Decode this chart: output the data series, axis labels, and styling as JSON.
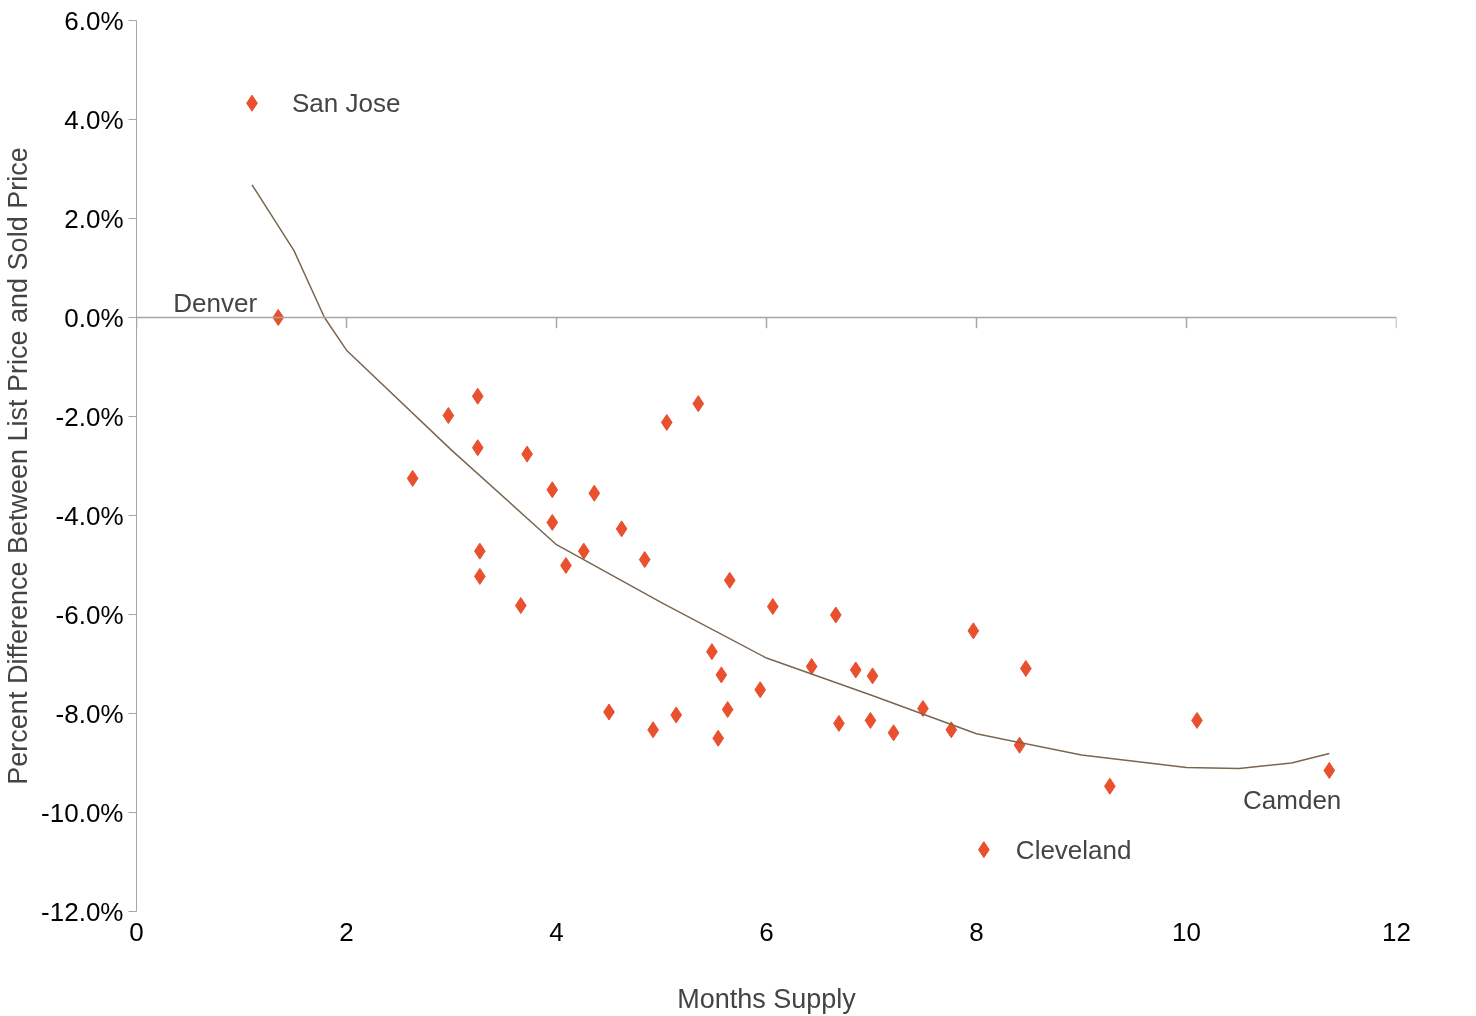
{
  "chart_data": {
    "type": "scatter",
    "xlabel": "Months Supply",
    "ylabel": "Percent Difference Between List Price and Sold Price",
    "xlim": [
      0,
      12
    ],
    "xticks": [
      0,
      2,
      4,
      6,
      8,
      10,
      12
    ],
    "ylim": [
      -12,
      6
    ],
    "yticks": [
      {
        "value": -12,
        "label": "-12.0%"
      },
      {
        "value": -10,
        "label": "-10.0%"
      },
      {
        "value": -8,
        "label": "-8.0%"
      },
      {
        "value": -6,
        "label": "-6.0%"
      },
      {
        "value": -4,
        "label": "-4.0%"
      },
      {
        "value": -2,
        "label": "-2.0%"
      },
      {
        "value": 0,
        "label": "0.0%"
      },
      {
        "value": 2,
        "label": "2.0%"
      },
      {
        "value": 4,
        "label": "4.0%"
      },
      {
        "value": 6,
        "label": "6.0%"
      }
    ],
    "grid": false,
    "marker": "diamond",
    "series": [
      {
        "color": "#e8502e",
        "x": [
          1.1,
          1.35,
          2.63,
          2.97,
          3.25,
          3.25,
          3.27,
          3.27,
          3.66,
          3.72,
          3.96,
          3.96,
          4.09,
          4.26,
          4.36,
          4.5,
          4.62,
          4.84,
          4.92,
          5.05,
          5.14,
          5.35,
          5.48,
          5.54,
          5.57,
          5.63,
          5.65,
          5.94,
          6.06,
          6.43,
          6.66,
          6.69,
          6.85,
          6.99,
          7.01,
          7.21,
          7.49,
          7.76,
          7.97,
          8.41,
          8.47,
          8.07,
          9.27,
          10.1,
          11.36
        ],
        "values": [
          4.33,
          0.0,
          -3.25,
          -1.98,
          -1.59,
          -2.63,
          -4.72,
          -5.23,
          -5.82,
          -2.76,
          -3.48,
          -4.14,
          -5.01,
          -4.72,
          -3.55,
          -7.97,
          -4.27,
          -4.89,
          -8.33,
          -2.12,
          -8.03,
          -1.74,
          -6.75,
          -8.5,
          -7.22,
          -7.92,
          -5.31,
          -7.52,
          -5.84,
          -7.05,
          -6.01,
          -8.2,
          -7.12,
          -8.14,
          -7.24,
          -8.39,
          -7.9,
          -8.33,
          -6.33,
          -8.64,
          -7.09,
          -10.75,
          -9.47,
          -8.14,
          -9.15
        ]
      },
      {
        "type": "line",
        "color": "#7a6650",
        "marker": "none",
        "line_style": "solid",
        "x": [
          1.1,
          1.5,
          1.79,
          2,
          3,
          4,
          5,
          6,
          7,
          8,
          9,
          10,
          10.5,
          11,
          11.36
        ],
        "values": [
          2.68,
          1.35,
          0.0,
          -0.66,
          -2.68,
          -4.59,
          -5.76,
          -6.88,
          -7.63,
          -8.41,
          -8.84,
          -9.09,
          -9.11,
          -9.0,
          -8.81
        ]
      }
    ],
    "ref_lines": [
      {
        "axis": "y",
        "value": 0,
        "color": "#a6a6a6"
      }
    ],
    "annotations": [
      {
        "text": "San Jose",
        "x": 1.1,
        "y": 4.33
      },
      {
        "text": "Denver",
        "x": 1.35,
        "y": 0.0
      },
      {
        "text": "Cleveland",
        "x": 8.07,
        "y": -10.75
      },
      {
        "text": "Camden",
        "x": 11.36,
        "y": -9.15
      }
    ]
  }
}
